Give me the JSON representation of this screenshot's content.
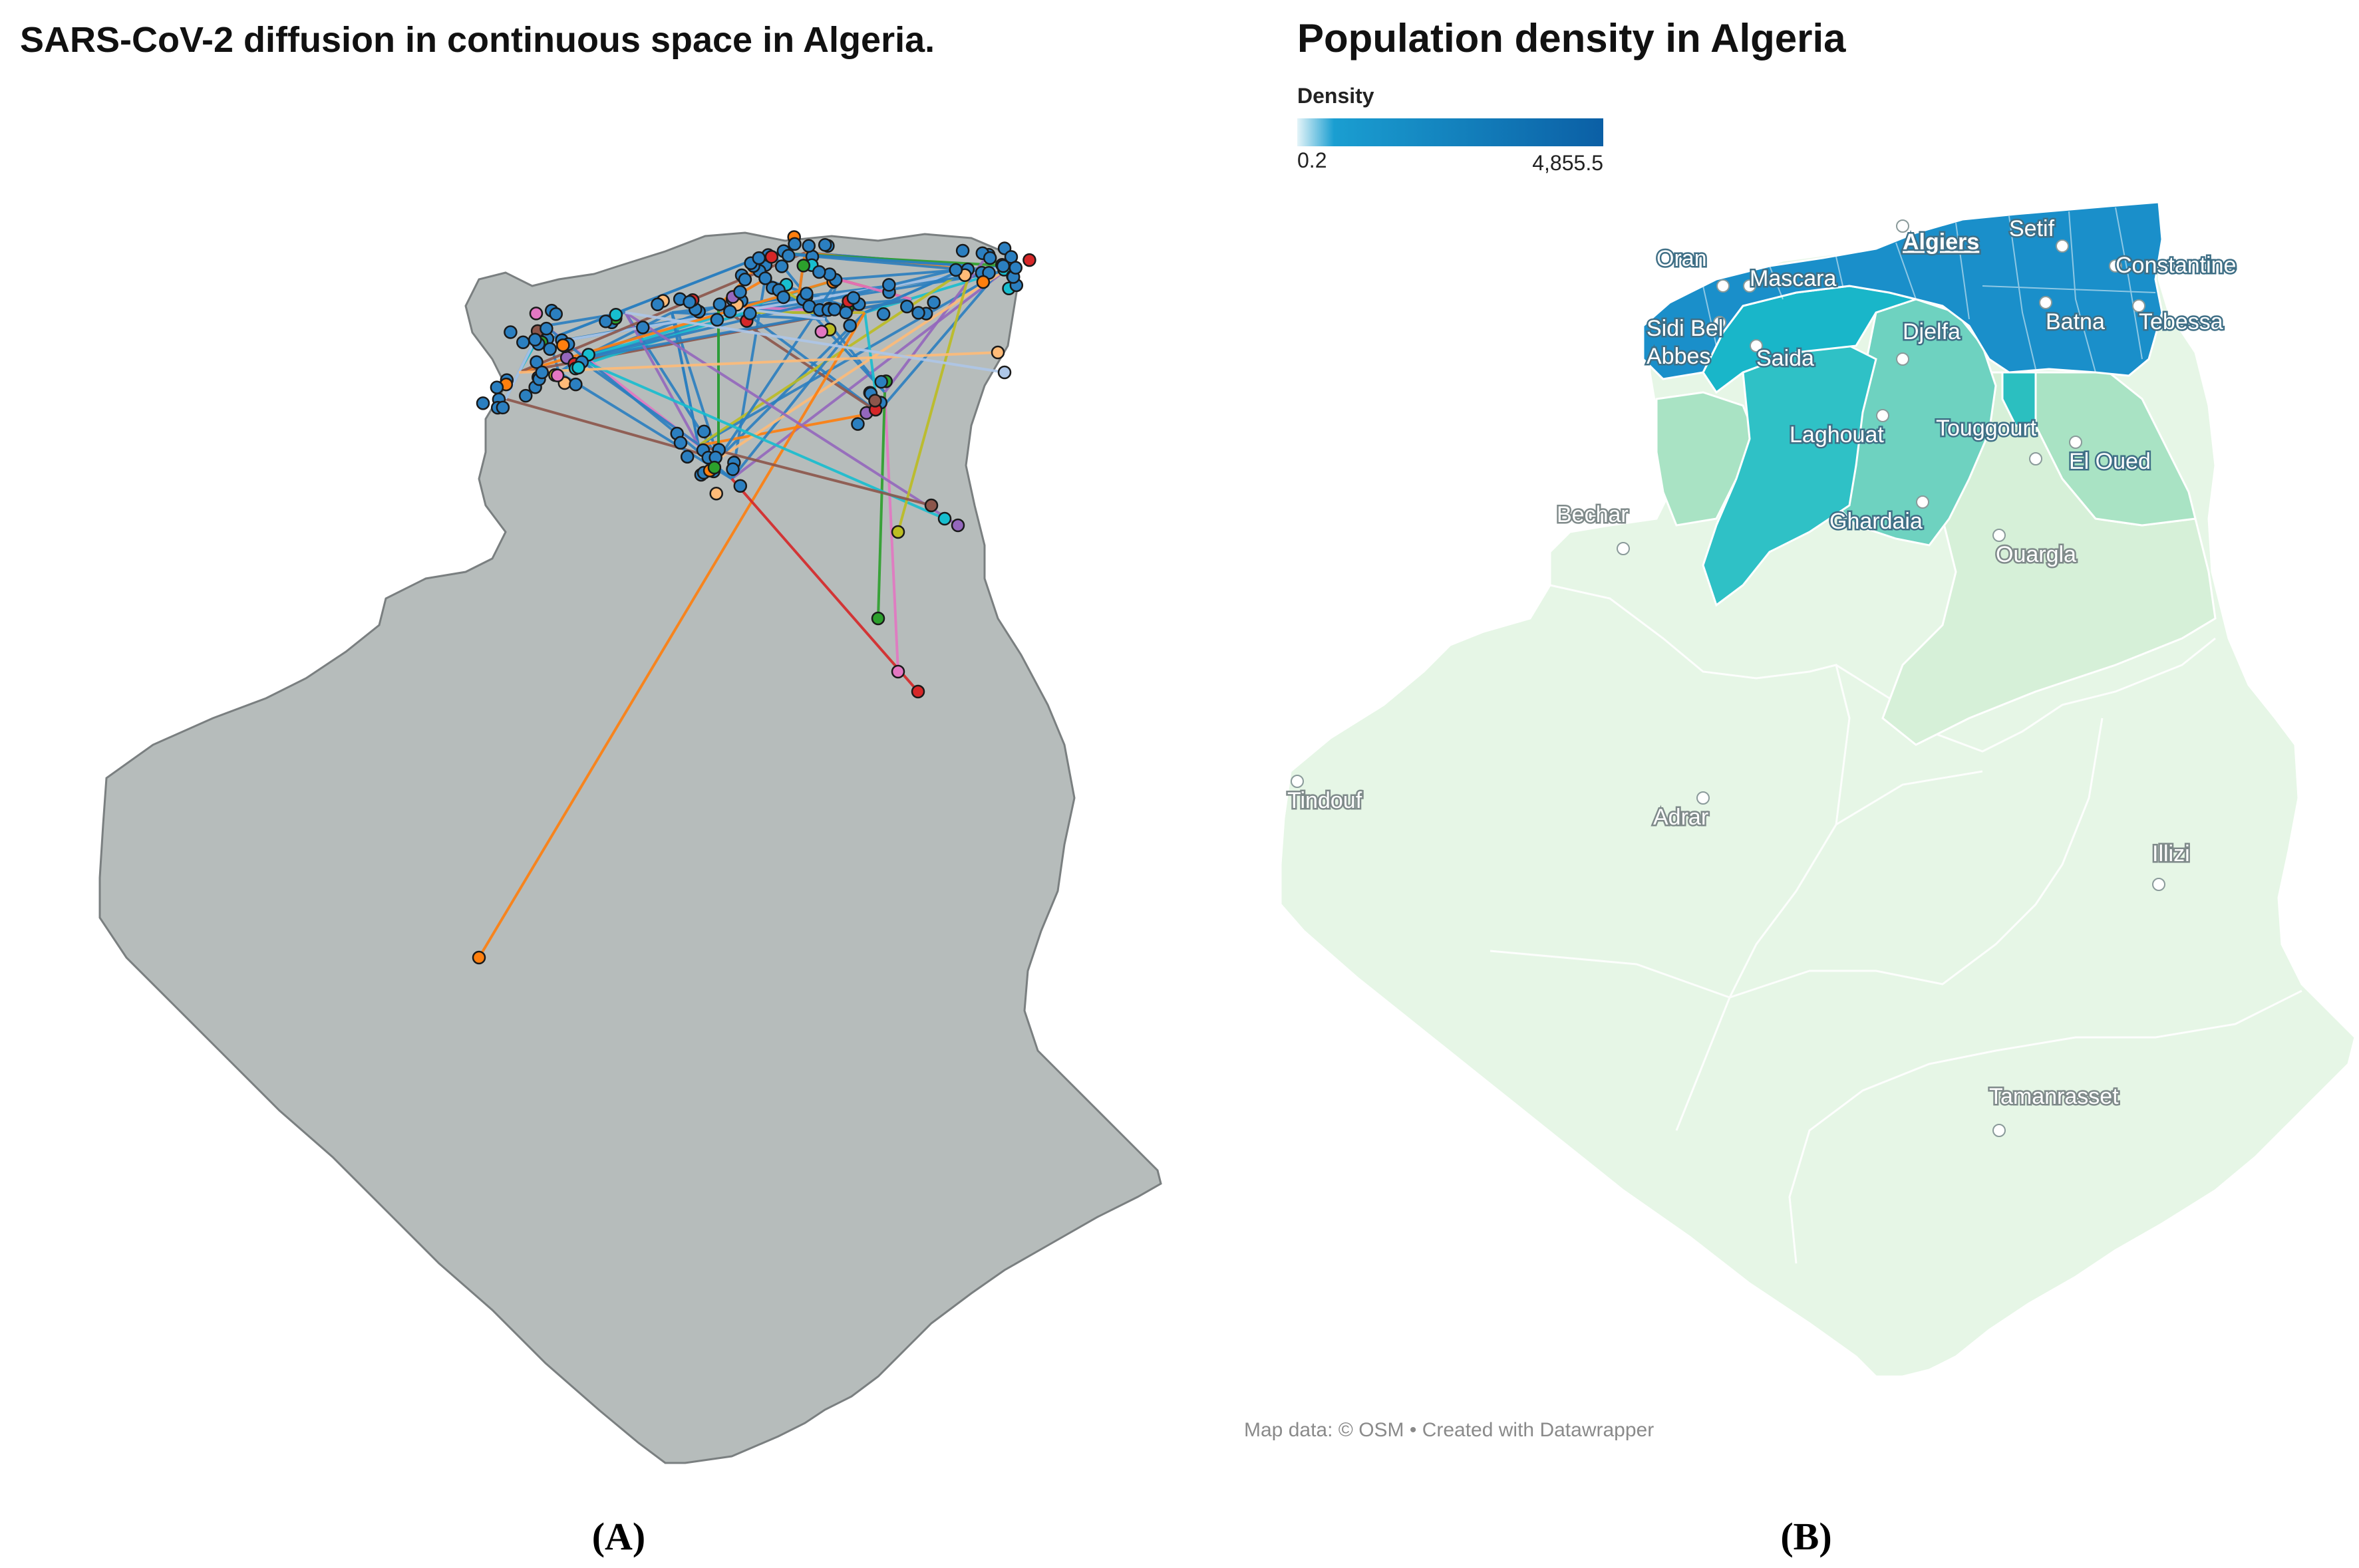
{
  "panel_a": {
    "title": "SARS-CoV-2 diffusion in continuous space in Algeria.",
    "label": "(A)",
    "country_fill": "#b6bcbb",
    "country_stroke": "#7a7f80",
    "node_fill": "#2b7fc0",
    "node_stroke": "#1a1a1a"
  },
  "panel_b": {
    "title": "Population density in Algeria",
    "label": "(B)",
    "legend": {
      "title": "Density",
      "min_label": "0.2",
      "max_label": "4,855.5",
      "min_value": 0.2,
      "max_value": 4855.5,
      "color_low": "#e4f4f8",
      "color_mid": "#1a9ed1",
      "color_high": "#0b5fa5"
    },
    "region_colors": {
      "very_high": "#1a8fca",
      "high": "#19b6c9",
      "medium_high": "#2bbfc0",
      "medium": "#6ed2c0",
      "low": "#a9e3c4",
      "lowest": "#e6f6e6"
    },
    "cities": [
      {
        "name": "Oran",
        "marker": "oran-marker"
      },
      {
        "name": "Mascara",
        "marker": "mascara-marker"
      },
      {
        "name": "Algiers",
        "marker": "algiers-marker"
      },
      {
        "name": "Setif",
        "marker": "setif-marker"
      },
      {
        "name": "Constantine",
        "marker": "constantine-marker"
      },
      {
        "name": "Sidi Bel Abbes",
        "marker": "sidi-bel-abbes-marker"
      },
      {
        "name": "Saida",
        "marker": "saida-marker"
      },
      {
        "name": "Djelfa",
        "marker": "djelfa-marker"
      },
      {
        "name": "Batna",
        "marker": "batna-marker"
      },
      {
        "name": "Tebessa",
        "marker": "tebessa-marker"
      },
      {
        "name": "Laghouat",
        "marker": "laghouat-marker"
      },
      {
        "name": "Touggourt",
        "marker": "touggourt-marker"
      },
      {
        "name": "El Oued",
        "marker": "el-oued-marker"
      },
      {
        "name": "Bechar",
        "marker": "bechar-marker"
      },
      {
        "name": "Ghardaia",
        "marker": "ghardaia-marker"
      },
      {
        "name": "Ouargla",
        "marker": "ouargla-marker"
      },
      {
        "name": "Tindouf",
        "marker": "tindouf-marker"
      },
      {
        "name": "Adrar",
        "marker": "adrar-marker"
      },
      {
        "name": "Illizi",
        "marker": "illizi-marker"
      },
      {
        "name": "Tamanrasset",
        "marker": "tamanrasset-marker"
      }
    ],
    "credit": "Map data: © OSM  • Created with Datawrapper"
  }
}
